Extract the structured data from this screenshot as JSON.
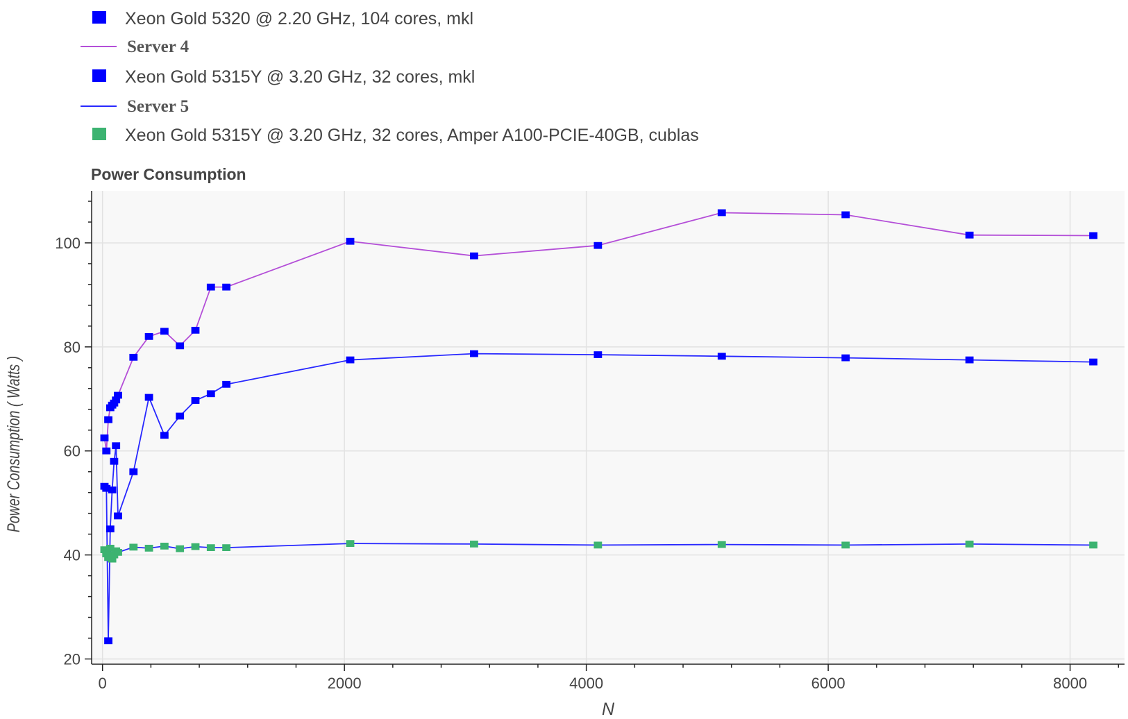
{
  "chart_data": {
    "type": "line",
    "title": "Power Consumption",
    "xlabel": "N",
    "ylabel": "Power Consumption ( Watts )",
    "xlim": [
      -90,
      8450
    ],
    "ylim": [
      19,
      110
    ],
    "xticks": [
      0,
      2000,
      4000,
      6000,
      8000
    ],
    "yticks": [
      20,
      40,
      60,
      80,
      100
    ],
    "grid": true,
    "legend_position": "top",
    "legend": [
      {
        "kind": "marker",
        "label": "Xeon Gold 5320 @ 2.20 GHz, 104 cores, mkl",
        "color": "#0000ff"
      },
      {
        "kind": "line",
        "label": "Server 4",
        "color": "#b44fd8"
      },
      {
        "kind": "marker",
        "label": "Xeon Gold 5315Y @ 3.20 GHz, 32 cores, mkl",
        "color": "#0000ff"
      },
      {
        "kind": "line",
        "label": "Server 5",
        "color": "#2828ff"
      },
      {
        "kind": "marker",
        "label": "Xeon Gold 5315Y @ 3.20 GHz, 32 cores, Amper A100-PCIE-40GB, cublas",
        "color": "#3cb371"
      }
    ],
    "series": [
      {
        "name": "Server 4",
        "line_color": "#b44fd8",
        "marker_color": "#0000ff",
        "x": [
          16,
          32,
          48,
          64,
          80,
          96,
          112,
          128,
          256,
          384,
          512,
          640,
          768,
          896,
          1024,
          2048,
          3072,
          4096,
          5120,
          6144,
          7168,
          8192
        ],
        "y": [
          62.5,
          60,
          66,
          68.3,
          68.8,
          69.2,
          69.8,
          70.7,
          78,
          82,
          83,
          80.2,
          83.2,
          91.5,
          91.5,
          100.3,
          97.5,
          99.5,
          105.8,
          105.4,
          101.5,
          101.4
        ]
      },
      {
        "name": "Server 5",
        "line_color": "#2828ff",
        "marker_color": "#0000ff",
        "x": [
          16,
          32,
          48,
          64,
          80,
          96,
          112,
          128,
          256,
          384,
          512,
          640,
          768,
          896,
          1024,
          2048,
          3072,
          4096,
          5120,
          6144,
          7168,
          8192
        ],
        "y": [
          53.2,
          52.8,
          23.5,
          45,
          52.5,
          58,
          61,
          47.5,
          56,
          70.3,
          63,
          66.7,
          69.7,
          71,
          72.8,
          77.5,
          78.7,
          78.5,
          78.2,
          77.9,
          77.5,
          77.1
        ]
      },
      {
        "name": "",
        "line_color": "#2828ff",
        "marker_color": "#3cb371",
        "x": [
          16,
          32,
          48,
          64,
          80,
          96,
          112,
          128,
          256,
          384,
          512,
          640,
          768,
          896,
          1024,
          2048,
          3072,
          4096,
          5120,
          6144,
          7168,
          8192
        ],
        "y": [
          41,
          40.2,
          39.5,
          41.3,
          39.2,
          40,
          40.8,
          40.5,
          41.5,
          41.3,
          41.7,
          41.2,
          41.6,
          41.4,
          41.4,
          42.2,
          42.1,
          41.9,
          42,
          41.9,
          42.1,
          41.9
        ]
      }
    ]
  }
}
